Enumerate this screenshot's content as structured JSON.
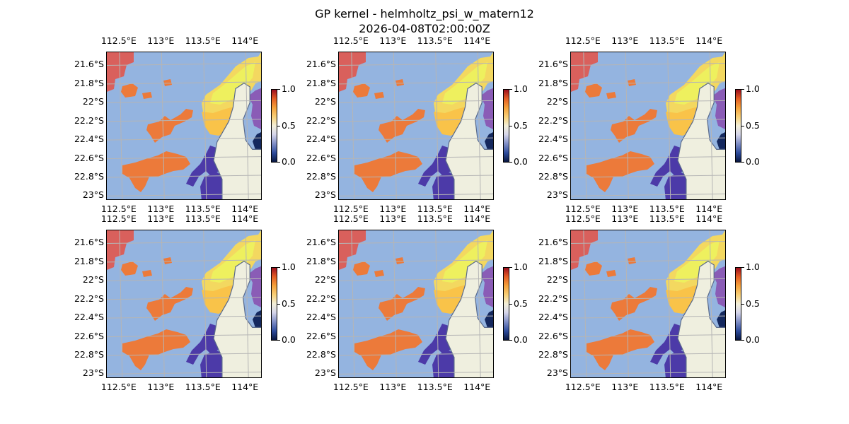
{
  "figure": {
    "title_line1": "GP kernel - helmholtz_psi_w_matern12",
    "title_line2": "2026-04-08T02:00:00Z"
  },
  "map": {
    "lon_ticks": [
      "112.5°E",
      "113°E",
      "113.5°E",
      "114°E"
    ],
    "lon_values": [
      112.5,
      113.0,
      113.5,
      114.0
    ],
    "lat_ticks": [
      "21.6°S",
      "21.8°S",
      "22°S",
      "22.2°S",
      "22.4°S",
      "22.6°S",
      "22.8°S",
      "23°S"
    ],
    "lat_values": [
      -21.6,
      -21.8,
      -22.0,
      -22.2,
      -22.4,
      -22.6,
      -22.8,
      -23.0
    ],
    "extent": {
      "lon_min": 112.35,
      "lon_max": 114.2,
      "lat_min": -23.05,
      "lat_max": -21.46
    },
    "grid": true,
    "colors": {
      "ocean": "#94b4e0",
      "land": "#efefdf",
      "coast": "#5a6a8a",
      "grid": "#b5b5b5"
    }
  },
  "colorbar": {
    "ticks": [
      "0.0",
      "0.5",
      "1.0"
    ],
    "tick_values": [
      0.0,
      0.5,
      1.0
    ],
    "range": [
      0.0,
      1.0
    ],
    "cmap": "RdYlBu_r"
  },
  "panels": [
    {
      "id": 1
    },
    {
      "id": 2
    },
    {
      "id": 3
    },
    {
      "id": 4
    },
    {
      "id": 5
    },
    {
      "id": 6
    }
  ]
}
